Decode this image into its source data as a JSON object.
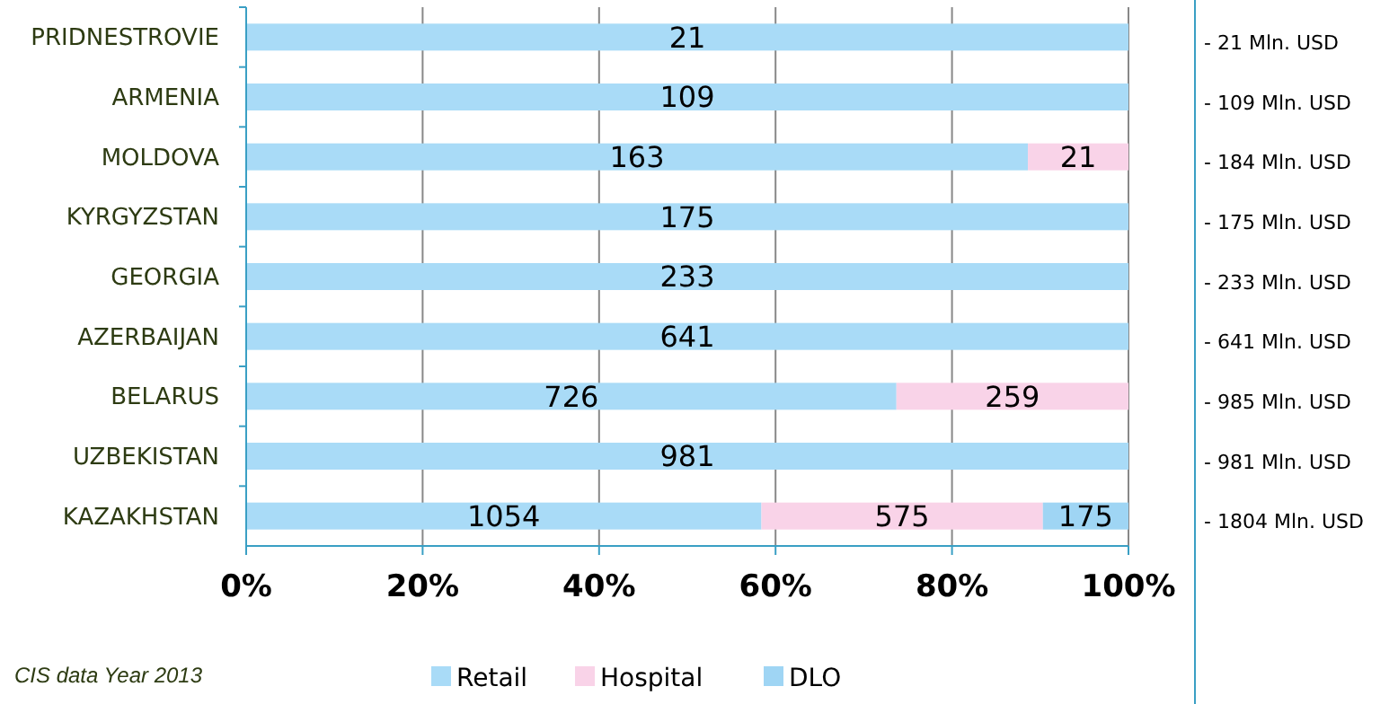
{
  "chart_data": {
    "type": "bar",
    "orientation": "horizontal",
    "stacked": true,
    "categories": [
      "PRIDNESTROVIE",
      "ARMENIA",
      "MOLDOVA",
      "KYRGYZSTAN",
      "GEORGIA",
      "AZERBAIJAN",
      "BELARUS",
      "UZBEKISTAN",
      "KAZAKHSTAN"
    ],
    "series": [
      {
        "name": "Retail",
        "color": "#a9dbf7",
        "values": [
          100,
          100,
          88.6,
          100,
          100,
          100,
          73.7,
          100,
          58.4
        ]
      },
      {
        "name": "Hospital",
        "color": "#f9d3e8",
        "values": [
          0,
          0,
          11.4,
          0,
          0,
          0,
          26.3,
          0,
          31.9
        ]
      },
      {
        "name": "DLO",
        "color": "#9fd5f4",
        "values": [
          0,
          0,
          0,
          0,
          0,
          0,
          0,
          0,
          9.7
        ]
      }
    ],
    "xlim": [
      0,
      100
    ],
    "xticks": [
      {
        "value": 0,
        "label": "0%"
      },
      {
        "value": 20,
        "label": "20%"
      },
      {
        "value": 40,
        "label": "40%"
      },
      {
        "value": 60,
        "label": "60%"
      },
      {
        "value": 80,
        "label": "80%"
      },
      {
        "value": 100,
        "label": "100%"
      }
    ],
    "grid": "x",
    "legend": "bottom",
    "annotations": [
      "21",
      "109",
      "163",
      "21",
      "175",
      "233",
      "641",
      "726",
      "259",
      "981",
      "1054",
      "575",
      "175",
      "- 21 Mln. USD",
      "- 109 Mln. USD",
      "- 184 Mln. USD",
      "- 175 Mln. USD",
      "- 233 Mln. USD",
      "- 641 Mln. USD",
      "- 985 Mln. USD",
      "- 981 Mln. USD",
      "- 1804 Mln. USD",
      "CIS data Year 2013"
    ]
  }
}
